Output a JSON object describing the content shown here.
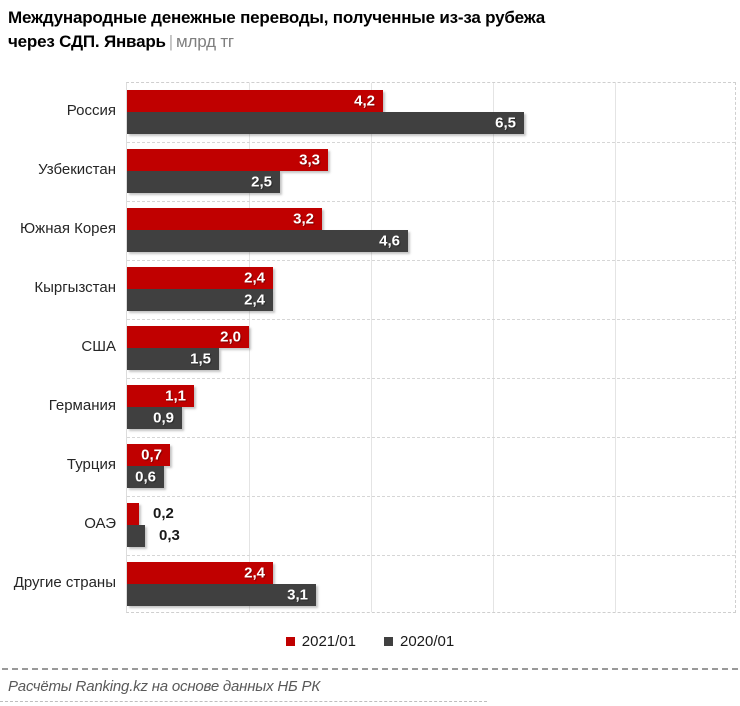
{
  "title": {
    "line1": "Международные денежные переводы, полученные из-за рубежа",
    "line2_bold": "через СДП. Январь",
    "separator": "|",
    "unit": "млрд тг"
  },
  "legend": [
    {
      "label": "2021/01",
      "color": "#c00000"
    },
    {
      "label": "2020/01",
      "color": "#404040"
    }
  ],
  "footer": {
    "source": "Расчёты Ranking.kz на основе данных НБ РК"
  },
  "colors": {
    "series_2021": "#c00000",
    "series_2020": "#404040",
    "grid": "#e4e4e4",
    "dashed_border": "#cfcfcf",
    "title_unit": "#7f7f7f",
    "footer_text": "#595959"
  },
  "chart_data": {
    "type": "bar",
    "orientation": "horizontal",
    "title": "Международные денежные переводы, полученные из-за рубежа через СДП. Январь",
    "unit": "млрд тг",
    "categories": [
      "Россия",
      "Узбекистан",
      "Южная Корея",
      "Кыргызстан",
      "США",
      "Германия",
      "Турция",
      "ОАЭ",
      "Другие страны"
    ],
    "series": [
      {
        "name": "2021/01",
        "color": "#c00000",
        "values": [
          4.2,
          3.3,
          3.2,
          2.4,
          2.0,
          1.1,
          0.7,
          0.2,
          2.4
        ],
        "labels": [
          "4,2",
          "3,3",
          "3,2",
          "2,4",
          "2,0",
          "1,1",
          "0,7",
          "0,2",
          "2,4"
        ]
      },
      {
        "name": "2020/01",
        "color": "#404040",
        "values": [
          6.5,
          2.5,
          4.6,
          2.4,
          1.5,
          0.9,
          0.6,
          0.3,
          3.1
        ],
        "labels": [
          "6,5",
          "2,5",
          "4,6",
          "2,4",
          "1,5",
          "0,9",
          "0,6",
          "0,3",
          "3,1"
        ]
      }
    ],
    "xlim": [
      0,
      10
    ],
    "gridlines_x": [
      2,
      4,
      6,
      8
    ],
    "grid": "on",
    "legend_position": "bottom",
    "value_labels": "on"
  }
}
